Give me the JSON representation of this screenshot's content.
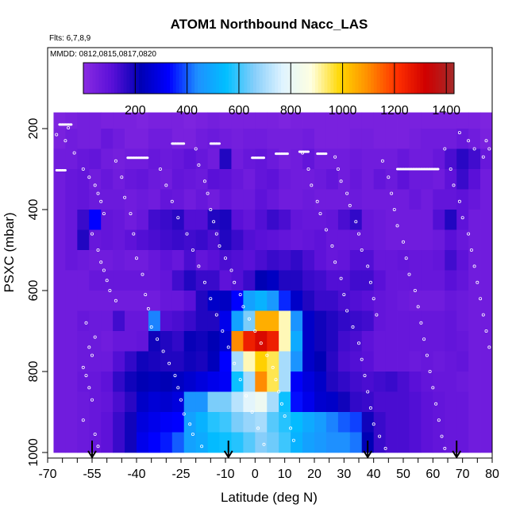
{
  "chart_data": {
    "type": "heatmap",
    "title": "ATOM1 Northbound Nacc_LAS",
    "notes": {
      "flights": "Flts: 6,7,8,9",
      "dates": "MMDD: 0812,0815,0817,0820"
    },
    "xlabel": "Latitude (deg N)",
    "ylabel": "PSXC (mbar)",
    "xlim": [
      -70,
      80
    ],
    "ylim": [
      1000,
      150
    ],
    "x_ticks": [
      -70,
      -55,
      -40,
      -25,
      -10,
      0,
      10,
      20,
      30,
      40,
      50,
      60,
      70,
      80
    ],
    "x_ticks_minor_step": 5,
    "y_ticks": [
      200,
      400,
      600,
      800,
      1000
    ],
    "colorbar": {
      "range": [
        0,
        1430
      ],
      "ticks": [
        200,
        400,
        600,
        800,
        1000,
        1200,
        1400
      ],
      "colors": [
        "#8a2be2",
        "#5a10d8",
        "#0000b4",
        "#0000ff",
        "#1e90ff",
        "#00bfff",
        "#87cefa",
        "#e0f4ff",
        "#ffffe0",
        "#ffd700",
        "#ff8c00",
        "#ff3000",
        "#d00000",
        "#a52a2a"
      ]
    },
    "grid": false,
    "lat_bins": [
      -68,
      -64,
      -60,
      -56,
      -52,
      -48,
      -44,
      -40,
      -36,
      -32,
      -28,
      -24,
      -20,
      -16,
      -12,
      -8,
      -4,
      0,
      4,
      8,
      12,
      16,
      20,
      24,
      28,
      32,
      36,
      40,
      44,
      48,
      52,
      56,
      60,
      64,
      68,
      72,
      76,
      80
    ],
    "p_bins": [
      160,
      200,
      250,
      300,
      350,
      400,
      450,
      500,
      550,
      600,
      650,
      700,
      750,
      800,
      850,
      900,
      950,
      1000
    ],
    "values": [
      [
        30,
        40,
        50,
        50,
        40,
        40,
        40,
        30,
        40,
        40,
        40,
        30,
        40,
        50,
        40,
        40,
        40,
        40,
        40,
        30,
        40,
        40,
        40,
        40,
        40,
        40,
        40,
        40,
        40,
        40,
        40,
        40,
        40,
        40,
        40,
        40,
        30
      ],
      [
        40,
        60,
        50,
        50,
        80,
        60,
        40,
        40,
        60,
        60,
        40,
        40,
        60,
        70,
        60,
        50,
        60,
        60,
        50,
        50,
        50,
        60,
        40,
        40,
        40,
        50,
        50,
        40,
        40,
        40,
        50,
        60,
        60,
        60,
        80,
        60,
        40
      ],
      [
        60,
        60,
        80,
        90,
        60,
        50,
        60,
        60,
        80,
        70,
        80,
        100,
        80,
        60,
        180,
        60,
        80,
        90,
        70,
        50,
        60,
        90,
        60,
        60,
        60,
        70,
        60,
        60,
        60,
        80,
        60,
        60,
        80,
        130,
        170,
        140,
        80
      ],
      [
        60,
        80,
        90,
        60,
        80,
        60,
        80,
        90,
        70,
        60,
        90,
        80,
        70,
        110,
        100,
        80,
        60,
        90,
        100,
        70,
        60,
        60,
        70,
        90,
        60,
        80,
        60,
        90,
        70,
        100,
        70,
        70,
        60,
        100,
        150,
        110,
        60
      ],
      [
        60,
        80,
        90,
        70,
        70,
        70,
        60,
        70,
        60,
        90,
        80,
        60,
        80,
        60,
        90,
        70,
        70,
        100,
        80,
        60,
        60,
        70,
        60,
        60,
        60,
        70,
        60,
        60,
        60,
        60,
        80,
        60,
        90,
        90,
        100,
        80,
        60
      ],
      [
        60,
        80,
        150,
        330,
        90,
        80,
        60,
        80,
        140,
        150,
        170,
        120,
        120,
        180,
        190,
        110,
        90,
        120,
        150,
        130,
        90,
        80,
        80,
        90,
        130,
        160,
        80,
        70,
        60,
        60,
        60,
        60,
        120,
        180,
        100,
        60,
        60
      ],
      [
        60,
        80,
        180,
        80,
        90,
        80,
        100,
        120,
        130,
        140,
        150,
        140,
        150,
        130,
        180,
        150,
        120,
        110,
        100,
        90,
        80,
        90,
        100,
        80,
        80,
        80,
        80,
        70,
        60,
        60,
        60,
        60,
        70,
        110,
        80,
        60,
        60
      ],
      [
        60,
        80,
        70,
        60,
        60,
        70,
        60,
        60,
        80,
        100,
        80,
        130,
        90,
        110,
        130,
        120,
        110,
        130,
        150,
        140,
        160,
        130,
        100,
        80,
        90,
        120,
        120,
        80,
        80,
        90,
        80,
        80,
        90,
        140,
        100,
        60,
        60
      ],
      [
        60,
        60,
        60,
        80,
        80,
        80,
        80,
        80,
        80,
        90,
        140,
        180,
        150,
        150,
        100,
        120,
        150,
        220,
        240,
        180,
        180,
        150,
        140,
        120,
        120,
        140,
        140,
        110,
        80,
        80,
        80,
        80,
        80,
        110,
        90,
        60,
        60
      ],
      [
        60,
        60,
        60,
        60,
        60,
        60,
        60,
        60,
        60,
        80,
        80,
        110,
        180,
        250,
        240,
        330,
        480,
        520,
        460,
        360,
        250,
        180,
        150,
        150,
        130,
        120,
        110,
        90,
        80,
        70,
        60,
        60,
        60,
        80,
        70,
        60,
        60
      ],
      [
        60,
        60,
        80,
        70,
        70,
        140,
        80,
        80,
        430,
        120,
        130,
        150,
        180,
        180,
        300,
        480,
        650,
        1050,
        1050,
        900,
        450,
        250,
        200,
        180,
        160,
        150,
        140,
        90,
        80,
        80,
        80,
        80,
        80,
        90,
        70,
        60,
        60
      ],
      [
        60,
        60,
        70,
        70,
        60,
        80,
        80,
        90,
        200,
        180,
        160,
        210,
        200,
        220,
        260,
        1100,
        1250,
        1300,
        1250,
        900,
        500,
        250,
        200,
        180,
        140,
        130,
        100,
        80,
        80,
        80,
        80,
        80,
        80,
        90,
        80,
        60,
        60
      ],
      [
        60,
        60,
        70,
        70,
        70,
        120,
        160,
        200,
        190,
        180,
        180,
        200,
        190,
        230,
        330,
        700,
        900,
        1000,
        950,
        700,
        450,
        250,
        220,
        170,
        130,
        120,
        110,
        80,
        80,
        80,
        70,
        80,
        70,
        80,
        90,
        60,
        60
      ],
      [
        60,
        60,
        80,
        80,
        100,
        160,
        200,
        220,
        230,
        220,
        240,
        260,
        280,
        300,
        320,
        560,
        700,
        1100,
        950,
        700,
        320,
        280,
        250,
        180,
        160,
        140,
        130,
        140,
        150,
        130,
        110,
        90,
        80,
        80,
        70,
        60,
        60
      ],
      [
        60,
        60,
        70,
        80,
        90,
        130,
        170,
        250,
        270,
        260,
        280,
        450,
        450,
        650,
        650,
        720,
        780,
        820,
        700,
        560,
        340,
        300,
        260,
        250,
        200,
        160,
        150,
        130,
        130,
        130,
        120,
        100,
        90,
        80,
        80,
        60,
        60
      ],
      [
        60,
        60,
        70,
        80,
        100,
        150,
        200,
        280,
        300,
        320,
        330,
        480,
        520,
        580,
        600,
        650,
        680,
        700,
        620,
        580,
        540,
        500,
        470,
        430,
        400,
        380,
        200,
        150,
        130,
        130,
        120,
        100,
        90,
        80,
        80,
        60,
        60
      ],
      [
        60,
        60,
        70,
        80,
        100,
        150,
        200,
        300,
        330,
        350,
        400,
        480,
        500,
        540,
        560,
        580,
        620,
        660,
        640,
        600,
        520,
        480,
        460,
        440,
        440,
        420,
        220,
        150,
        130,
        130,
        120,
        100,
        90,
        80,
        80,
        60,
        60
      ]
    ],
    "arrows_latitude": [
      -55,
      -9,
      38,
      68
    ],
    "observation_rings": [
      [
        -69,
        178
      ],
      [
        -67,
        215
      ],
      [
        -64,
        230
      ],
      [
        -63,
        198
      ],
      [
        -61,
        260
      ],
      [
        -58,
        300
      ],
      [
        -56,
        320
      ],
      [
        -54,
        340
      ],
      [
        -53,
        360
      ],
      [
        -52,
        380
      ],
      [
        -51,
        410
      ],
      [
        -55,
        460
      ],
      [
        -53,
        500
      ],
      [
        -52,
        530
      ],
      [
        -51,
        550
      ],
      [
        -50,
        575
      ],
      [
        -49,
        600
      ],
      [
        -47,
        625
      ],
      [
        -57,
        680
      ],
      [
        -54,
        715
      ],
      [
        -56,
        740
      ],
      [
        -55,
        760
      ],
      [
        -58,
        790
      ],
      [
        -57,
        810
      ],
      [
        -56,
        840
      ],
      [
        -55,
        870
      ],
      [
        -58,
        920
      ],
      [
        -54,
        955
      ],
      [
        -53,
        985
      ],
      [
        -47,
        280
      ],
      [
        -45,
        320
      ],
      [
        -44,
        370
      ],
      [
        -42,
        410
      ],
      [
        -41,
        460
      ],
      [
        -40,
        520
      ],
      [
        -38,
        560
      ],
      [
        -37,
        610
      ],
      [
        -36,
        645
      ],
      [
        -35,
        690
      ],
      [
        -33,
        720
      ],
      [
        -31,
        750
      ],
      [
        -29,
        780
      ],
      [
        -27,
        810
      ],
      [
        -26,
        840
      ],
      [
        -25,
        870
      ],
      [
        -24,
        905
      ],
      [
        -22,
        930
      ],
      [
        -21,
        955
      ],
      [
        -18,
        985
      ],
      [
        -20,
        250
      ],
      [
        -19,
        290
      ],
      [
        -17,
        330
      ],
      [
        -16,
        360
      ],
      [
        -15,
        400
      ],
      [
        -14,
        430
      ],
      [
        -13,
        460
      ],
      [
        -12,
        490
      ],
      [
        -10,
        520
      ],
      [
        -8,
        550
      ],
      [
        -7,
        580
      ],
      [
        -5,
        610
      ],
      [
        -4,
        640
      ],
      [
        -2,
        670
      ],
      [
        0,
        700
      ],
      [
        2,
        730
      ],
      [
        4,
        760
      ],
      [
        6,
        790
      ],
      [
        7,
        820
      ],
      [
        8,
        850
      ],
      [
        9,
        880
      ],
      [
        10,
        910
      ],
      [
        12,
        940
      ],
      [
        13,
        970
      ],
      [
        16,
        260
      ],
      [
        18,
        300
      ],
      [
        19,
        340
      ],
      [
        21,
        380
      ],
      [
        22,
        410
      ],
      [
        24,
        450
      ],
      [
        26,
        490
      ],
      [
        27,
        530
      ],
      [
        29,
        570
      ],
      [
        30,
        610
      ],
      [
        31,
        650
      ],
      [
        33,
        690
      ],
      [
        35,
        730
      ],
      [
        36,
        770
      ],
      [
        37,
        810
      ],
      [
        38,
        850
      ],
      [
        39,
        890
      ],
      [
        40,
        930
      ],
      [
        42,
        960
      ],
      [
        44,
        990
      ],
      [
        43,
        280
      ],
      [
        45,
        320
      ],
      [
        46,
        360
      ],
      [
        47,
        400
      ],
      [
        48,
        440
      ],
      [
        50,
        480
      ],
      [
        51,
        520
      ],
      [
        52,
        560
      ],
      [
        54,
        600
      ],
      [
        55,
        640
      ],
      [
        56,
        680
      ],
      [
        57,
        720
      ],
      [
        58,
        760
      ],
      [
        59,
        800
      ],
      [
        60,
        840
      ],
      [
        61,
        880
      ],
      [
        62,
        920
      ],
      [
        63,
        960
      ],
      [
        64,
        990
      ],
      [
        64,
        250
      ],
      [
        66,
        300
      ],
      [
        67,
        340
      ],
      [
        69,
        380
      ],
      [
        70,
        420
      ],
      [
        72,
        460
      ],
      [
        73,
        500
      ],
      [
        74,
        540
      ],
      [
        75,
        580
      ],
      [
        76,
        620
      ],
      [
        77,
        660
      ],
      [
        78,
        700
      ],
      [
        79,
        740
      ],
      [
        69,
        210
      ],
      [
        72,
        230
      ],
      [
        74,
        250
      ],
      [
        77,
        270
      ],
      [
        78,
        230
      ],
      [
        79,
        250
      ],
      [
        -32,
        300
      ],
      [
        -30,
        340
      ],
      [
        -28,
        380
      ],
      [
        -26,
        420
      ],
      [
        -23,
        460
      ],
      [
        -21,
        500
      ],
      [
        -19,
        540
      ],
      [
        -17,
        580
      ],
      [
        -15,
        620
      ],
      [
        -13,
        660
      ],
      [
        -11,
        700
      ],
      [
        -9,
        740
      ],
      [
        -7,
        780
      ],
      [
        -5,
        820
      ],
      [
        -3,
        860
      ],
      [
        -1,
        900
      ],
      [
        1,
        940
      ],
      [
        3,
        980
      ],
      [
        27,
        270
      ],
      [
        28,
        300
      ],
      [
        29,
        330
      ],
      [
        31,
        360
      ],
      [
        32,
        390
      ],
      [
        34,
        430
      ],
      [
        35,
        460
      ],
      [
        36,
        500
      ],
      [
        38,
        540
      ],
      [
        39,
        580
      ],
      [
        40,
        620
      ],
      [
        41,
        660
      ]
    ],
    "observation_dashes": [
      [
        -66,
        190,
        -62,
        190
      ],
      [
        -43,
        272,
        -36,
        272
      ],
      [
        -28,
        237,
        -24,
        237
      ],
      [
        -15,
        237,
        -12,
        237
      ],
      [
        -1,
        272,
        3,
        272
      ],
      [
        7,
        262,
        11,
        262
      ],
      [
        15,
        257,
        18,
        257
      ],
      [
        21,
        262,
        24,
        262
      ],
      [
        48,
        300,
        62,
        300
      ],
      [
        -67,
        303,
        -64,
        303
      ]
    ]
  }
}
